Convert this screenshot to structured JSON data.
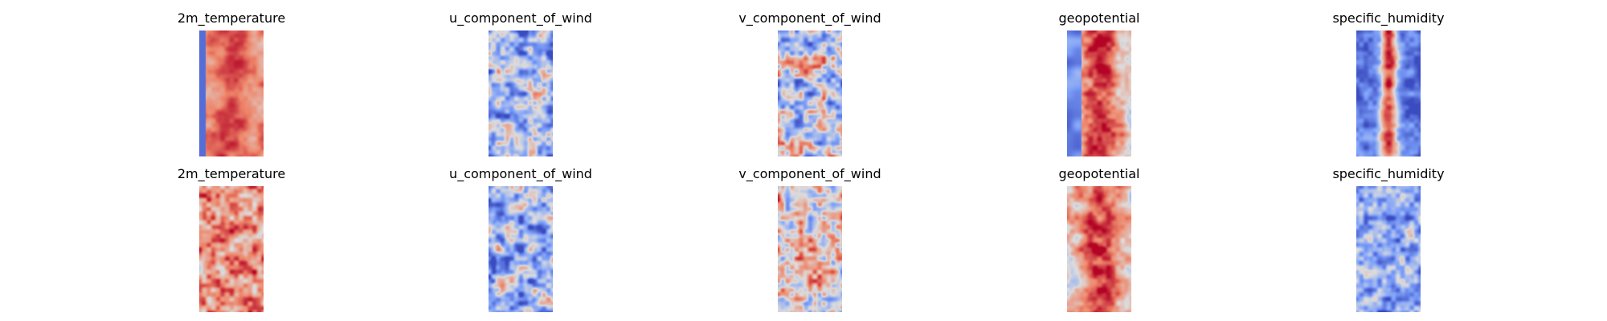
{
  "chart_data": {
    "type": "heatmap",
    "colormap": "coolwarm",
    "layout": "2 rows x 5 columns",
    "axes_visible": false,
    "rows": [
      {
        "panels": [
          {
            "title": "2m_temperature",
            "pattern": "warm-bands",
            "cold_left_edge": true
          },
          {
            "title": "u_component_of_wind",
            "pattern": "cool-noise"
          },
          {
            "title": "v_component_of_wind",
            "pattern": "mixed-noise"
          },
          {
            "title": "geopotential",
            "pattern": "warm-core",
            "cold_left_edge": true
          },
          {
            "title": "specific_humidity",
            "pattern": "cold-sides-warm-core"
          }
        ]
      },
      {
        "panels": [
          {
            "title": "2m_temperature",
            "pattern": "warm-noise"
          },
          {
            "title": "u_component_of_wind",
            "pattern": "cool-noise"
          },
          {
            "title": "v_component_of_wind",
            "pattern": "mixed-warm-noise"
          },
          {
            "title": "geopotential",
            "pattern": "warm-core"
          },
          {
            "title": "specific_humidity",
            "pattern": "cool-uniform"
          }
        ]
      }
    ]
  }
}
